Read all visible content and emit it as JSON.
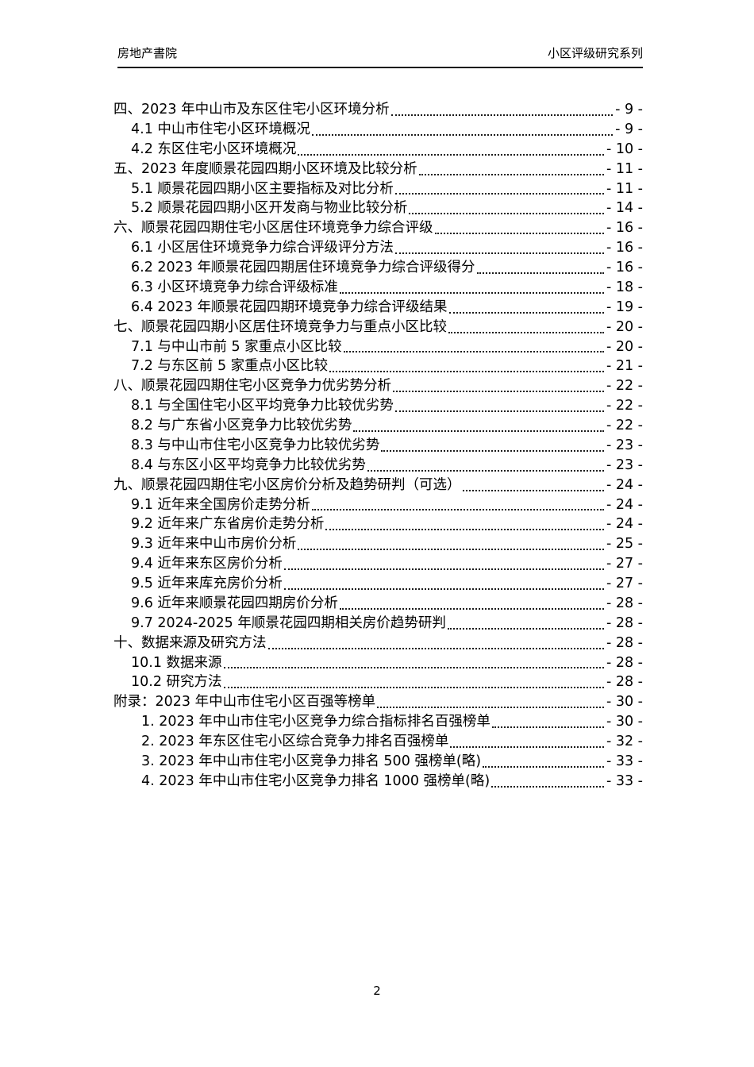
{
  "header": {
    "left_text": "房地产書院",
    "right_text": "小区评级研究系列"
  },
  "toc": {
    "entries": [
      {
        "label": "四、2023 年中山市及东区住宅小区环境分析",
        "page": "- 9 -",
        "level": 0
      },
      {
        "label": "4.1 中山市住宅小区环境概况",
        "page": "- 9 -",
        "level": 1
      },
      {
        "label": "4.2 东区住宅小区环境概况",
        "page": "- 10 -",
        "level": 1
      },
      {
        "label": "五、2023 年度顺景花园四期小区环境及比较分析",
        "page": "- 11 -",
        "level": 0
      },
      {
        "label": "5.1 顺景花园四期小区主要指标及对比分析",
        "page": "- 11 -",
        "level": 1
      },
      {
        "label": "5.2 顺景花园四期小区开发商与物业比较分析",
        "page": "- 14 -",
        "level": 1
      },
      {
        "label": "六、顺景花园四期住宅小区居住环境竞争力综合评级",
        "page": "- 16 -",
        "level": 0
      },
      {
        "label": "6.1 小区居住环境竞争力综合评级评分方法",
        "page": "- 16 -",
        "level": 1
      },
      {
        "label": "6.2 2023 年顺景花园四期居住环境竞争力综合评级得分",
        "page": "- 16 -",
        "level": 1
      },
      {
        "label": "6.3 小区环境竞争力综合评级标准",
        "page": "- 18 -",
        "level": 1
      },
      {
        "label": "6.4 2023 年顺景花园四期环境竞争力综合评级结果",
        "page": "- 19 -",
        "level": 1
      },
      {
        "label": "七、顺景花园四期小区居住环境竞争力与重点小区比较",
        "page": "- 20 -",
        "level": 0
      },
      {
        "label": "7.1 与中山市前 5 家重点小区比较",
        "page": "- 20 -",
        "level": 1
      },
      {
        "label": "7.2 与东区前 5 家重点小区比较",
        "page": "- 21 -",
        "level": 1
      },
      {
        "label": "八、顺景花园四期住宅小区竞争力优劣势分析",
        "page": "- 22 -",
        "level": 0
      },
      {
        "label": "8.1 与全国住宅小区平均竞争力比较优劣势",
        "page": "- 22 -",
        "level": 1
      },
      {
        "label": "8.2 与广东省小区竞争力比较优劣势",
        "page": "- 22 -",
        "level": 1
      },
      {
        "label": "8.3 与中山市住宅小区竞争力比较优劣势",
        "page": "- 23 -",
        "level": 1
      },
      {
        "label": "8.4 与东区小区平均竞争力比较优劣势",
        "page": "- 23 -",
        "level": 1
      },
      {
        "label": "九、顺景花园四期住宅小区房价分析及趋势研判（可选）",
        "page": "- 24 -",
        "level": 0
      },
      {
        "label": "9.1 近年来全国房价走势分析",
        "page": "- 24 -",
        "level": 1
      },
      {
        "label": "9.2 近年来广东省房价走势分析",
        "page": "- 24 -",
        "level": 1
      },
      {
        "label": "9.3 近年来中山市房价分析",
        "page": "- 25 -",
        "level": 1
      },
      {
        "label": "9.4 近年来东区房价分析",
        "page": "- 27 -",
        "level": 1
      },
      {
        "label": "9.5 近年来库充房价分析",
        "page": "- 27 -",
        "level": 1
      },
      {
        "label": "9.6 近年来顺景花园四期房价分析",
        "page": "- 28 -",
        "level": 1
      },
      {
        "label": "9.7 2024-2025 年顺景花园四期相关房价趋势研判",
        "page": "- 28 -",
        "level": 1
      },
      {
        "label": "十、数据来源及研究方法",
        "page": "- 28 -",
        "level": 0
      },
      {
        "label": "10.1 数据来源",
        "page": "- 28 -",
        "level": 1
      },
      {
        "label": "10.2 研究方法",
        "page": "- 28 -",
        "level": 1
      },
      {
        "label": "附录：2023 年中山市住宅小区百强等榜单",
        "page": "- 30 -",
        "level": 0
      },
      {
        "label": "1. 2023 年中山市住宅小区竞争力综合指标排名百强榜单",
        "page": "- 30 -",
        "level": 2
      },
      {
        "label": "2. 2023 年东区住宅小区综合竞争力排名百强榜单",
        "page": "- 32 -",
        "level": 2
      },
      {
        "label": "3. 2023 年中山市住宅小区竞争力排名 500 强榜单(略)",
        "page": "- 33 -",
        "level": 2
      },
      {
        "label": "4. 2023 年中山市住宅小区竞争力排名 1000 强榜单(略)",
        "page": "- 33 -",
        "level": 2
      }
    ]
  },
  "footer": {
    "page_number": "2"
  }
}
